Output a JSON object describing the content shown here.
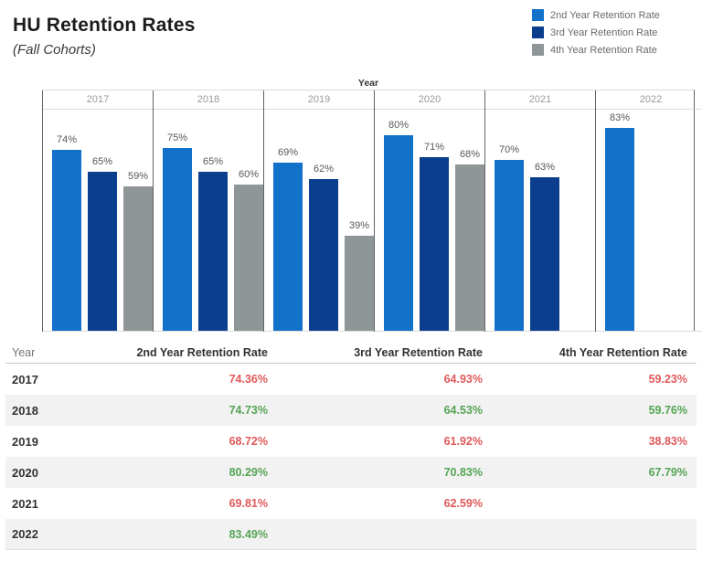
{
  "header": {
    "title": "HU Retention Rates",
    "subtitle": "(Fall Cohorts)"
  },
  "legend": {
    "items": [
      {
        "label": "2nd Year Retention Rate",
        "color": "#1272ca"
      },
      {
        "label": "3rd Year Retention Rate",
        "color": "#0c3e8e"
      },
      {
        "label": "4th Year Retention Rate",
        "color": "#8f9697"
      }
    ]
  },
  "chart_data": {
    "type": "bar",
    "title": "HU Retention Rates (Fall Cohorts)",
    "axis_title": "Year",
    "categories": [
      "2017",
      "2018",
      "2019",
      "2020",
      "2021",
      "2022"
    ],
    "series": [
      {
        "name": "2nd Year Retention Rate",
        "color": "#1272ca",
        "values": [
          74,
          75,
          69,
          80,
          70,
          83
        ]
      },
      {
        "name": "3rd Year Retention Rate",
        "color": "#0c3e8e",
        "values": [
          65,
          65,
          62,
          71,
          63,
          null
        ]
      },
      {
        "name": "4th Year Retention Rate",
        "color": "#8f9697",
        "values": [
          59,
          60,
          39,
          68,
          null,
          null
        ]
      }
    ],
    "value_label_suffix": "%",
    "ylim": [
      0,
      91
    ],
    "grid": false,
    "legend_position": "top-right"
  },
  "table": {
    "columns": [
      "Year",
      "2nd Year Retention Rate",
      "3rd Year Retention Rate",
      "4th Year Retention Rate"
    ],
    "rows": [
      {
        "year": "2017",
        "cells": [
          {
            "text": "74.36%",
            "color": "red"
          },
          {
            "text": "64.93%",
            "color": "red"
          },
          {
            "text": "59.23%",
            "color": "red"
          }
        ]
      },
      {
        "year": "2018",
        "cells": [
          {
            "text": "74.73%",
            "color": "green"
          },
          {
            "text": "64.53%",
            "color": "green"
          },
          {
            "text": "59.76%",
            "color": "green"
          }
        ]
      },
      {
        "year": "2019",
        "cells": [
          {
            "text": "68.72%",
            "color": "red"
          },
          {
            "text": "61.92%",
            "color": "red"
          },
          {
            "text": "38.83%",
            "color": "red"
          }
        ]
      },
      {
        "year": "2020",
        "cells": [
          {
            "text": "80.29%",
            "color": "green"
          },
          {
            "text": "70.83%",
            "color": "green"
          },
          {
            "text": "67.79%",
            "color": "green"
          }
        ]
      },
      {
        "year": "2021",
        "cells": [
          {
            "text": "69.81%",
            "color": "red"
          },
          {
            "text": "62.59%",
            "color": "red"
          },
          {
            "text": "",
            "color": ""
          }
        ]
      },
      {
        "year": "2022",
        "cells": [
          {
            "text": "83.49%",
            "color": "green"
          },
          {
            "text": "",
            "color": ""
          },
          {
            "text": "",
            "color": ""
          }
        ]
      }
    ],
    "stripe_color": "#f2f2f2"
  }
}
